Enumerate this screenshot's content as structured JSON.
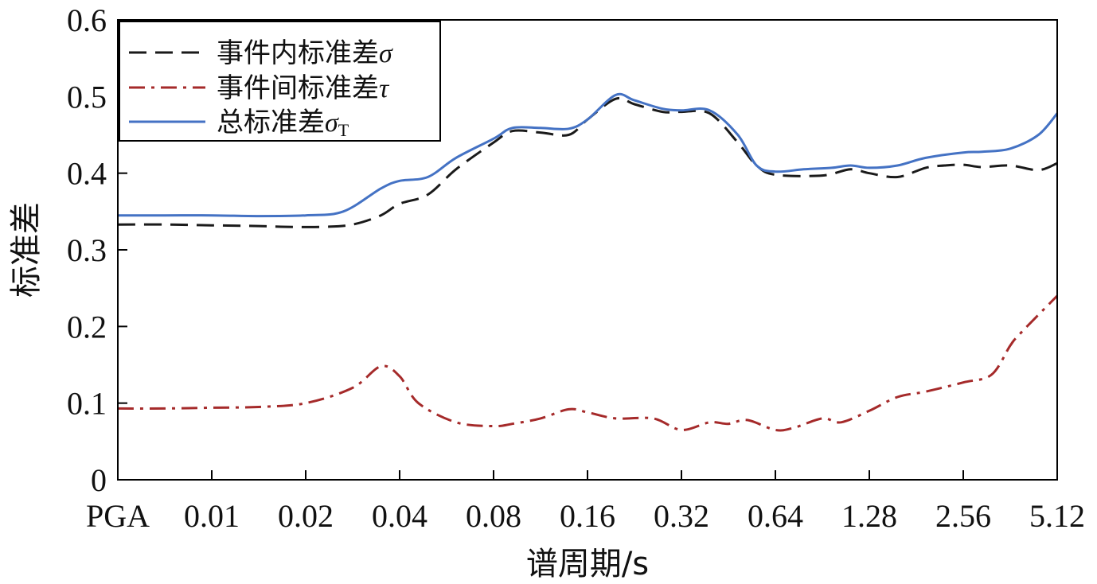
{
  "chart_data": {
    "type": "line",
    "xlabel": "谱周期/s",
    "ylabel": "标准差",
    "x_tick_labels": [
      "PGA",
      "0.01",
      "0.02",
      "0.04",
      "0.08",
      "0.16",
      "0.32",
      "0.64",
      "1.28",
      "2.56",
      "5.12"
    ],
    "ylim": [
      0,
      0.6
    ],
    "y_ticks": [
      "0",
      "0.1",
      "0.2",
      "0.3",
      "0.4",
      "0.5",
      "0.6"
    ],
    "grid": false,
    "legend_position": "top-left",
    "series": [
      {
        "name": "事件内标准差",
        "symbol": "σ",
        "style": "dashed",
        "color": "#1a1a1a",
        "x": [
          0,
          0.5,
          1,
          1.5,
          1.8,
          2.2,
          2.5,
          2.8,
          3.0,
          3.3,
          3.6,
          4.0,
          4.2,
          4.5,
          4.8,
          5.0,
          5.3,
          5.5,
          5.8,
          6.0,
          6.3,
          6.6,
          6.8,
          7.0,
          7.5,
          7.8,
          8.0,
          8.3,
          8.6,
          8.8,
          9.0,
          9.2,
          9.5,
          9.8,
          10.0
        ],
        "y": [
          0.333,
          0.333,
          0.332,
          0.331,
          0.33,
          0.33,
          0.333,
          0.345,
          0.36,
          0.372,
          0.405,
          0.44,
          0.455,
          0.453,
          0.45,
          0.47,
          0.497,
          0.49,
          0.48,
          0.48,
          0.478,
          0.44,
          0.41,
          0.398,
          0.397,
          0.405,
          0.4,
          0.395,
          0.407,
          0.41,
          0.411,
          0.408,
          0.41,
          0.404,
          0.413
        ]
      },
      {
        "name": "事件间标准差",
        "symbol": "τ",
        "style": "dash-dot",
        "color": "#a52a2a",
        "x": [
          0,
          0.5,
          1,
          1.5,
          2.0,
          2.5,
          2.8,
          3.0,
          3.2,
          3.6,
          4.0,
          4.2,
          4.5,
          4.8,
          5.0,
          5.3,
          5.7,
          6.0,
          6.3,
          6.5,
          6.7,
          7.0,
          7.2,
          7.5,
          7.7,
          8.0,
          8.3,
          8.6,
          9.0,
          9.3,
          9.5,
          9.6,
          10.0
        ],
        "y": [
          0.093,
          0.093,
          0.094,
          0.095,
          0.1,
          0.12,
          0.148,
          0.135,
          0.1,
          0.075,
          0.07,
          0.073,
          0.08,
          0.092,
          0.088,
          0.08,
          0.08,
          0.065,
          0.075,
          0.073,
          0.078,
          0.065,
          0.068,
          0.08,
          0.075,
          0.09,
          0.108,
          0.115,
          0.127,
          0.137,
          0.175,
          0.19,
          0.24
        ]
      },
      {
        "name": "总标准差",
        "symbol": "σ",
        "subscript": "T",
        "style": "solid",
        "color": "#4472c4",
        "x": [
          0,
          0.5,
          1,
          1.5,
          2.0,
          2.4,
          2.8,
          3.0,
          3.3,
          3.6,
          4.0,
          4.2,
          4.5,
          4.8,
          5.0,
          5.3,
          5.5,
          5.8,
          6.0,
          6.3,
          6.6,
          6.8,
          7.0,
          7.3,
          7.6,
          7.8,
          8.0,
          8.3,
          8.6,
          9.0,
          9.2,
          9.5,
          9.8,
          10.0
        ],
        "y": [
          0.345,
          0.345,
          0.345,
          0.344,
          0.345,
          0.35,
          0.38,
          0.39,
          0.395,
          0.42,
          0.445,
          0.459,
          0.459,
          0.458,
          0.47,
          0.502,
          0.495,
          0.484,
          0.482,
          0.482,
          0.45,
          0.41,
          0.402,
          0.405,
          0.407,
          0.41,
          0.407,
          0.41,
          0.42,
          0.427,
          0.428,
          0.432,
          0.45,
          0.478
        ]
      }
    ]
  }
}
